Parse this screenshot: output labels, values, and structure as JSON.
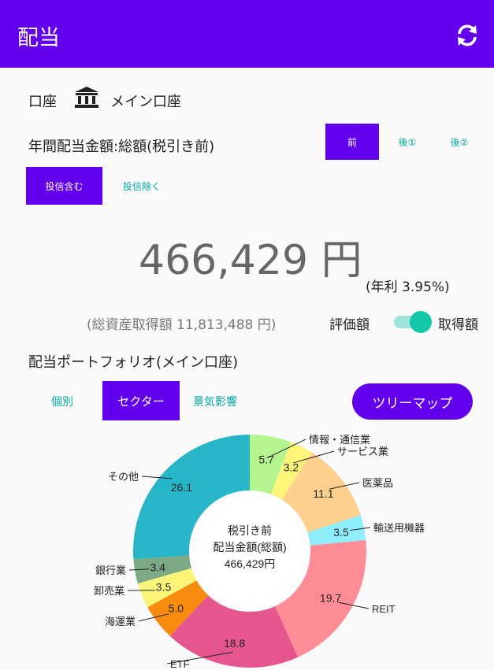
{
  "app_bar": {
    "title": "配当",
    "refresh_icon": "refresh-icon"
  },
  "account": {
    "label": "口座",
    "icon": "bank-icon",
    "name": "メイン口座"
  },
  "dividend_header": {
    "label": "年間配当金額:総額(税引き前)",
    "tabs": [
      "前",
      "後①",
      "後②"
    ],
    "selected_tab": "前"
  },
  "fund_filter": {
    "include_label": "投信含む",
    "exclude_label": "投信除く",
    "selected": "投信含む"
  },
  "amount": {
    "value": "466,429 円",
    "yield": "(年利 3.95%)",
    "total_assets": "(総資産取得額 11,813,488 円)",
    "toggle_left": "評価額",
    "toggle_right": "取得額",
    "toggle_state": "取得額"
  },
  "portfolio": {
    "title": "配当ポートフォリオ(メイン口座)",
    "tabs": [
      "個別",
      "セクター",
      "景気影響"
    ],
    "selected_tab": "セクター",
    "treemap_label": "ツリーマップ"
  },
  "chart_data": {
    "type": "pie",
    "donut": true,
    "center_text": [
      "税引き前",
      "配当金額(総額)",
      "466,429円"
    ],
    "slices": [
      {
        "label": "情報・通信業",
        "value": 5.7,
        "color": "#b5f58f"
      },
      {
        "label": "サービス業",
        "value": 3.2,
        "color": "#fdf57a"
      },
      {
        "label": "医薬品",
        "value": 11.1,
        "color": "#fdd08e"
      },
      {
        "label": "輸送用機器",
        "value": 3.5,
        "color": "#8eeefc"
      },
      {
        "label": "REIT",
        "value": 19.7,
        "color": "#fd8c96"
      },
      {
        "label": "ETF",
        "value": 18.8,
        "color": "#e5558e"
      },
      {
        "label": "海運業",
        "value": 5.0,
        "color": "#f78b0f"
      },
      {
        "label": "卸売業",
        "value": 3.5,
        "color": "#fbf478"
      },
      {
        "label": "銀行業",
        "value": 3.4,
        "color": "#7caa85"
      },
      {
        "label": "その他",
        "value": 26.1,
        "color": "#27b6c8"
      }
    ]
  }
}
